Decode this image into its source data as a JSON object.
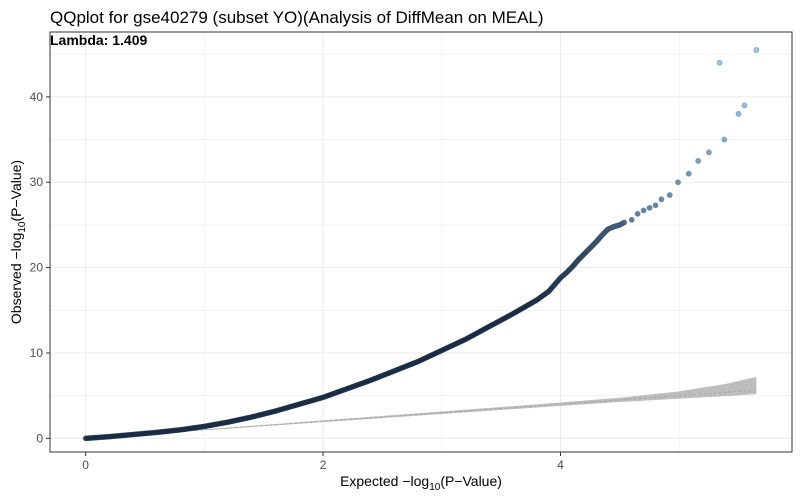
{
  "chart_data": {
    "type": "scatter",
    "title": "QQplot for gse40279 (subset YO)(Analysis of DiffMean on MEAL)",
    "annotation": "Lambda:  1.409",
    "xlabel": {
      "prefix": "Expected  −log",
      "sub": "10",
      "suffix": "(P−Value)"
    },
    "ylabel": {
      "prefix": "Observed  −log",
      "sub": "10",
      "suffix": "(P−Value)"
    },
    "xlim": [
      -0.3,
      5.95
    ],
    "ylim": [
      -1.6,
      47.6
    ],
    "xticks": [
      0,
      2,
      4
    ],
    "yticks": [
      0,
      10,
      20,
      30,
      40
    ],
    "grid": true,
    "curve_points": [
      [
        0.0,
        0.0
      ],
      [
        0.2,
        0.2
      ],
      [
        0.4,
        0.45
      ],
      [
        0.6,
        0.7
      ],
      [
        0.8,
        1.0
      ],
      [
        1.0,
        1.4
      ],
      [
        1.2,
        1.9
      ],
      [
        1.4,
        2.5
      ],
      [
        1.6,
        3.2
      ],
      [
        1.8,
        4.0
      ],
      [
        2.0,
        4.8
      ],
      [
        2.2,
        5.8
      ],
      [
        2.4,
        6.8
      ],
      [
        2.6,
        7.9
      ],
      [
        2.8,
        9.0
      ],
      [
        3.0,
        10.3
      ],
      [
        3.2,
        11.6
      ],
      [
        3.4,
        13.1
      ],
      [
        3.6,
        14.6
      ],
      [
        3.8,
        16.2
      ],
      [
        3.9,
        17.2
      ],
      [
        4.0,
        18.8
      ],
      [
        4.05,
        19.4
      ],
      [
        4.1,
        20.1
      ],
      [
        4.15,
        20.9
      ],
      [
        4.2,
        21.6
      ],
      [
        4.25,
        22.3
      ],
      [
        4.3,
        23.0
      ],
      [
        4.35,
        23.8
      ],
      [
        4.4,
        24.5
      ],
      [
        4.45,
        24.8
      ],
      [
        4.5,
        25.0
      ],
      [
        4.55,
        25.4
      ]
    ],
    "outlier_points": [
      [
        4.6,
        25.6
      ],
      [
        4.65,
        26.3
      ],
      [
        4.7,
        26.7
      ],
      [
        4.75,
        27.0
      ],
      [
        4.8,
        27.3
      ],
      [
        4.85,
        28.0
      ],
      [
        4.92,
        28.5
      ],
      [
        4.99,
        30.0
      ],
      [
        5.08,
        31.0
      ],
      [
        5.16,
        32.5
      ],
      [
        5.25,
        33.5
      ],
      [
        5.38,
        35.0
      ],
      [
        5.5,
        38.0
      ],
      [
        5.55,
        39.0
      ],
      [
        5.34,
        44.0
      ],
      [
        5.65,
        45.5
      ]
    ],
    "reference_band": {
      "x": [
        0.0,
        1.0,
        2.0,
        3.0,
        4.0,
        4.5,
        5.0,
        5.4,
        5.65
      ],
      "lower": [
        0.0,
        0.95,
        1.9,
        2.85,
        3.8,
        4.25,
        4.65,
        4.95,
        5.2
      ],
      "upper": [
        0.0,
        1.05,
        2.1,
        3.15,
        4.2,
        4.75,
        5.5,
        6.4,
        7.2
      ]
    },
    "colors": {
      "point_dark": "#1a2d44",
      "point_light": "#8fb8d8",
      "band": "#bdbdbd",
      "grid": "#ebebeb",
      "panel_border": "#333333"
    }
  }
}
